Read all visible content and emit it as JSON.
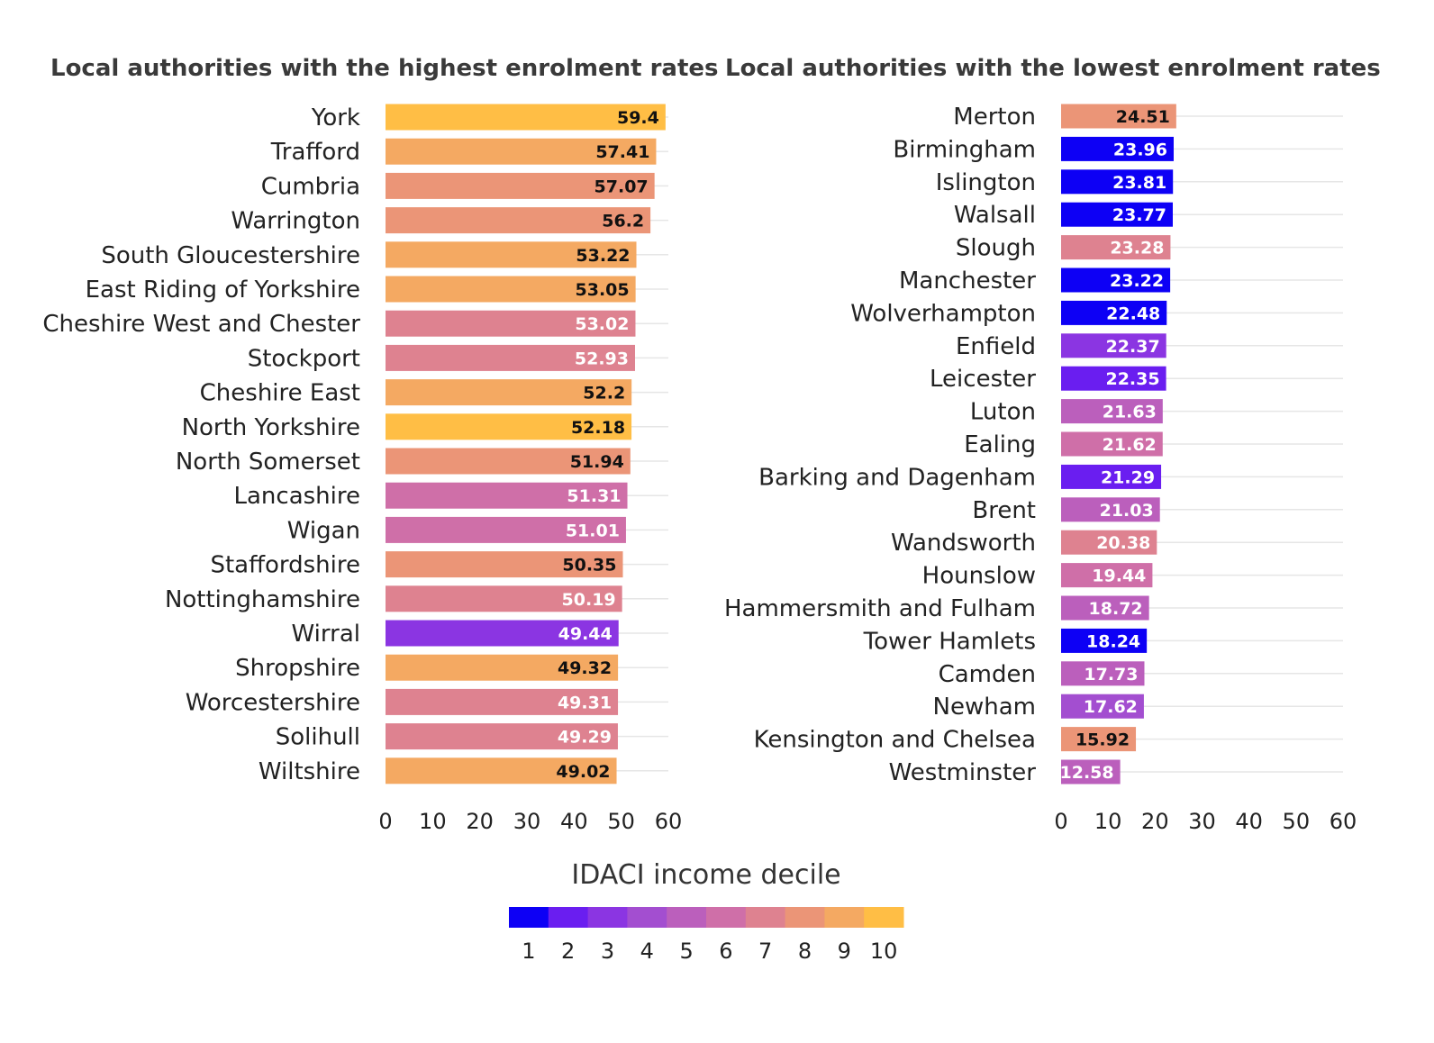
{
  "chart_data": [
    {
      "type": "bar",
      "orientation": "horizontal",
      "title": "Local authorities with the highest enrolment rates",
      "xlim": [
        0,
        60
      ],
      "xticks": [
        0,
        10,
        20,
        30,
        40,
        50,
        60
      ],
      "grid": true,
      "categories": [
        "York",
        "Trafford",
        "Cumbria",
        "Warrington",
        "South Gloucestershire",
        "East Riding of Yorkshire",
        "Cheshire West and Chester",
        "Stockport",
        "Cheshire East",
        "North Yorkshire",
        "North Somerset",
        "Lancashire",
        "Wigan",
        "Staffordshire",
        "Nottinghamshire",
        "Wirral",
        "Shropshire",
        "Worcestershire",
        "Solihull",
        "Wiltshire"
      ],
      "values": [
        59.4,
        57.41,
        57.07,
        56.2,
        53.22,
        53.05,
        53.02,
        52.93,
        52.2,
        52.18,
        51.94,
        51.31,
        51.01,
        50.35,
        50.19,
        49.44,
        49.32,
        49.31,
        49.29,
        49.02
      ],
      "value_labels": [
        "59.4",
        "57.41",
        "57.07",
        "56.2",
        "53.22",
        "53.05",
        "53.02",
        "52.93",
        "52.2",
        "52.18",
        "51.94",
        "51.31",
        "51.01",
        "50.35",
        "50.19",
        "49.44",
        "49.32",
        "49.31",
        "49.29",
        "49.02"
      ],
      "decile": [
        10,
        9,
        8,
        8,
        9,
        9,
        7,
        7,
        9,
        10,
        8,
        6,
        6,
        8,
        7,
        3,
        9,
        7,
        7,
        9
      ]
    },
    {
      "type": "bar",
      "orientation": "horizontal",
      "title": "Local authorities with the lowest enrolment rates",
      "xlim": [
        0,
        60
      ],
      "xticks": [
        0,
        10,
        20,
        30,
        40,
        50,
        60
      ],
      "grid": true,
      "categories": [
        "Merton",
        "Birmingham",
        "Islington",
        "Walsall",
        "Slough",
        "Manchester",
        "Wolverhampton",
        "Enfield",
        "Leicester",
        "Luton",
        "Ealing",
        "Barking and Dagenham",
        "Brent",
        "Wandsworth",
        "Hounslow",
        "Hammersmith and Fulham",
        "Tower Hamlets",
        "Camden",
        "Newham",
        "Kensington and Chelsea",
        "Westminster"
      ],
      "values": [
        24.51,
        23.96,
        23.81,
        23.77,
        23.28,
        23.22,
        22.48,
        22.37,
        22.35,
        21.63,
        21.62,
        21.29,
        21.03,
        20.38,
        19.44,
        18.72,
        18.24,
        17.73,
        17.62,
        15.92,
        12.58
      ],
      "value_labels": [
        "24.51",
        "23.96",
        "23.81",
        "23.77",
        "23.28",
        "23.22",
        "22.48",
        "22.37",
        "22.35",
        "21.63",
        "21.62",
        "21.29",
        "21.03",
        "20.38",
        "19.44",
        "18.72",
        "18.24",
        "17.73",
        "17.62",
        "15.92",
        "12.58"
      ],
      "decile": [
        8,
        1,
        1,
        1,
        7,
        1,
        1,
        3,
        2,
        5,
        6,
        2,
        5,
        7,
        6,
        5,
        1,
        5,
        4,
        8,
        5
      ]
    }
  ],
  "legend": {
    "title": "IDACI income decile",
    "labels": [
      "1",
      "2",
      "3",
      "4",
      "5",
      "6",
      "7",
      "8",
      "9",
      "10"
    ],
    "colors": [
      "#0d00f5",
      "#6a1ef0",
      "#8b35e2",
      "#a34ed0",
      "#bb5fbc",
      "#cf6fa8",
      "#de8290",
      "#eb9577",
      "#f4a962",
      "#ffbe45"
    ]
  }
}
